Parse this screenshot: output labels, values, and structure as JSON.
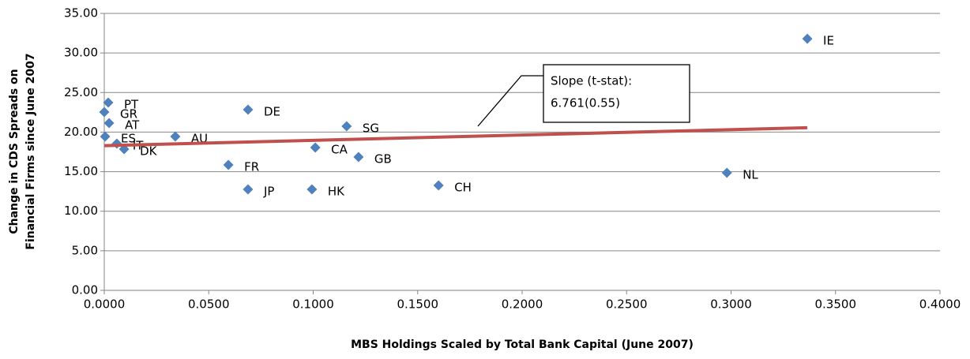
{
  "chart_data": {
    "type": "scatter",
    "x_label": "MBS Holdings Scaled by Total Bank Capital (June 2007)",
    "y_label": [
      "Change in CDS Spreads on",
      "Financial Firms since June 2007"
    ],
    "color": "#4f81bd",
    "labels": [
      "IE",
      "NL",
      "CH",
      "GB",
      "SG",
      "CA",
      "HK",
      "DE",
      "JP",
      "FR",
      "AU",
      "PT",
      "GR",
      "AT",
      "ES",
      "IT",
      "DK"
    ],
    "x": [
      0.3365,
      0.298,
      0.16,
      0.1217,
      0.116,
      0.101,
      0.0994,
      0.0688,
      0.0688,
      0.0594,
      0.034,
      0.0019,
      0.0,
      0.0023,
      0.0004,
      0.006,
      0.0095
    ],
    "y": [
      31.8,
      14.86,
      13.26,
      16.85,
      20.74,
      18.05,
      12.76,
      22.83,
      12.76,
      15.85,
      19.44,
      23.73,
      22.53,
      21.14,
      19.44,
      18.55,
      17.85
    ],
    "trendline": {
      "color": "#c0504d",
      "x": [
        0,
        0.3365
      ],
      "y": [
        18.28,
        20.555
      ]
    },
    "annotation": [
      "Slope (t-stat):",
      "6.761(0.55)"
    ],
    "xlim": [
      0,
      0.4
    ],
    "ylim": [
      0,
      35
    ],
    "xticks": [
      {
        "value": 0,
        "label": "0.0000"
      },
      {
        "value": 0.05,
        "label": "0.0500"
      },
      {
        "value": 0.1,
        "label": "0.1000"
      },
      {
        "value": 0.15,
        "label": "0.1500"
      },
      {
        "value": 0.2,
        "label": "0.2000"
      },
      {
        "value": 0.25,
        "label": "0.2500"
      },
      {
        "value": 0.3,
        "label": "0.3000"
      },
      {
        "value": 0.35,
        "label": "0.3500"
      },
      {
        "value": 0.4,
        "label": "0.4000"
      }
    ],
    "yticks": [
      {
        "value": 0,
        "label": "0.00"
      },
      {
        "value": 5,
        "label": "5.00"
      },
      {
        "value": 10,
        "label": "10.00"
      },
      {
        "value": 15,
        "label": "15.00"
      },
      {
        "value": 20,
        "label": "20.00"
      },
      {
        "value": 25,
        "label": "25.00"
      },
      {
        "value": 30,
        "label": "30.00"
      },
      {
        "value": 35,
        "label": "35.00"
      }
    ],
    "grid": true
  }
}
